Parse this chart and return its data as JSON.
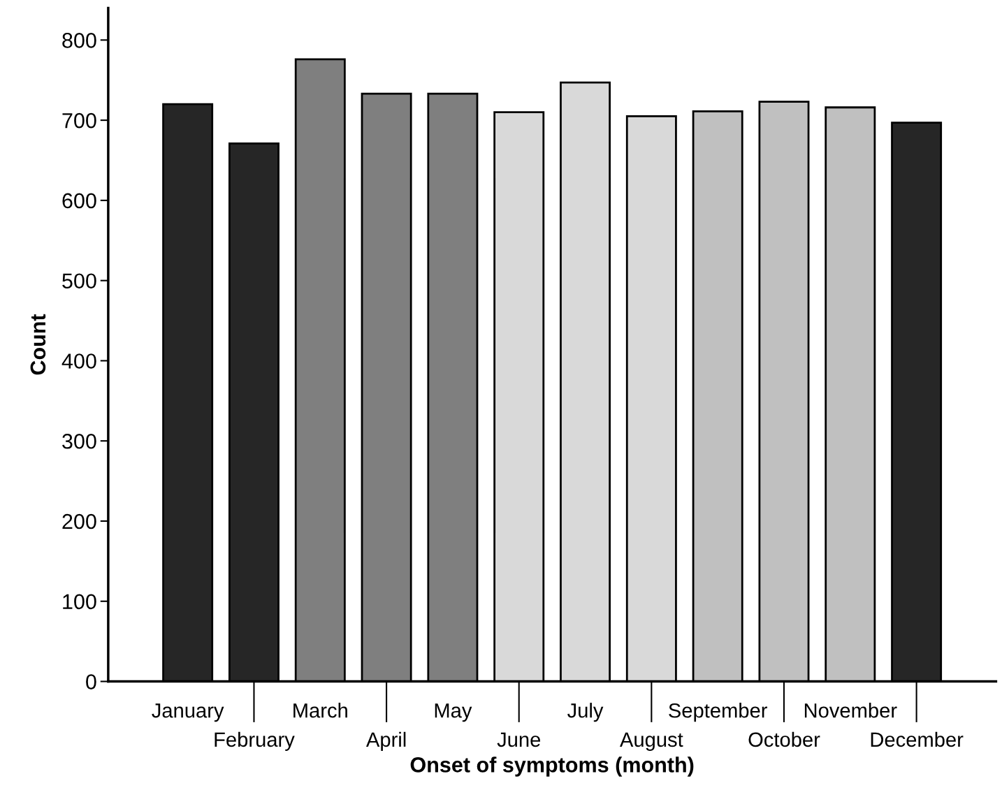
{
  "chart_data": {
    "type": "bar",
    "xlabel": "Onset of symptoms (month)",
    "ylabel": "Count",
    "categories": [
      "January",
      "February",
      "March",
      "April",
      "May",
      "June",
      "July",
      "August",
      "September",
      "October",
      "November",
      "December"
    ],
    "values": [
      720,
      671,
      776,
      733,
      733,
      710,
      747,
      705,
      711,
      723,
      716,
      697
    ],
    "colors": [
      "#262626",
      "#262626",
      "#7f7f7f",
      "#7f7f7f",
      "#7f7f7f",
      "#d9d9d9",
      "#d9d9d9",
      "#d9d9d9",
      "#c0c0c0",
      "#c0c0c0",
      "#c0c0c0",
      "#262626"
    ],
    "ylim": [
      0,
      840
    ],
    "yticks": [
      0,
      100,
      200,
      300,
      400,
      500,
      600,
      700,
      800
    ],
    "grid": false,
    "legend": false
  }
}
